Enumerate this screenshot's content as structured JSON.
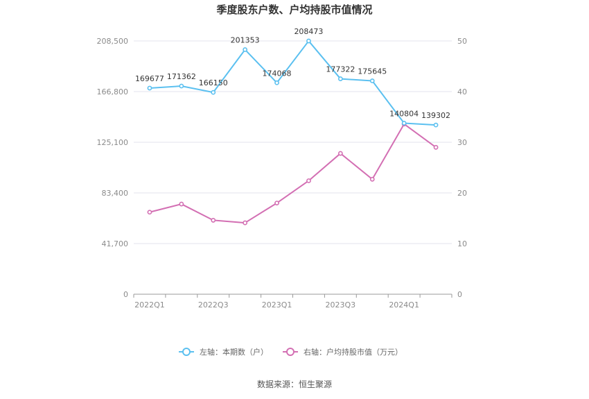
{
  "chart_data": {
    "type": "line",
    "title": "季度股东户数、户均持股市值情况",
    "categories": [
      "2022Q1",
      "2022Q2",
      "2022Q3",
      "2022Q4",
      "2023Q1",
      "2023Q2",
      "2023Q3",
      "2023Q4",
      "2024Q1",
      "2024Q2"
    ],
    "x_tick_labels": [
      "2022Q1",
      "2022Q3",
      "2023Q1",
      "2023Q3",
      "2024Q1"
    ],
    "y_left": {
      "ticks": [
        "0",
        "41,700",
        "83,400",
        "125,100",
        "166,800",
        "208,500"
      ],
      "min": 0,
      "max": 208500
    },
    "y_right": {
      "ticks": [
        "0",
        "10",
        "20",
        "30",
        "40",
        "50"
      ],
      "min": 0,
      "max": 50
    },
    "series": [
      {
        "name": "左轴：本期数（户）",
        "axis": "left",
        "color": "#5bc0f0",
        "values": [
          169677,
          171362,
          166150,
          201353,
          174068,
          208473,
          177322,
          175645,
          140804,
          139302
        ],
        "labels": [
          "169677",
          "171362",
          "166150",
          "201353",
          "174068",
          "208473",
          "177322",
          "175645",
          "140804",
          "139302"
        ]
      },
      {
        "name": "右轴：户均持股市值（万元）",
        "axis": "right",
        "color": "#d36fb3",
        "values": [
          16.2,
          17.8,
          14.6,
          14.1,
          18.0,
          22.4,
          27.8,
          22.7,
          33.6,
          29.0
        ]
      }
    ],
    "grid": true,
    "legend_position": "bottom"
  },
  "source": "数据来源：恒生聚源"
}
